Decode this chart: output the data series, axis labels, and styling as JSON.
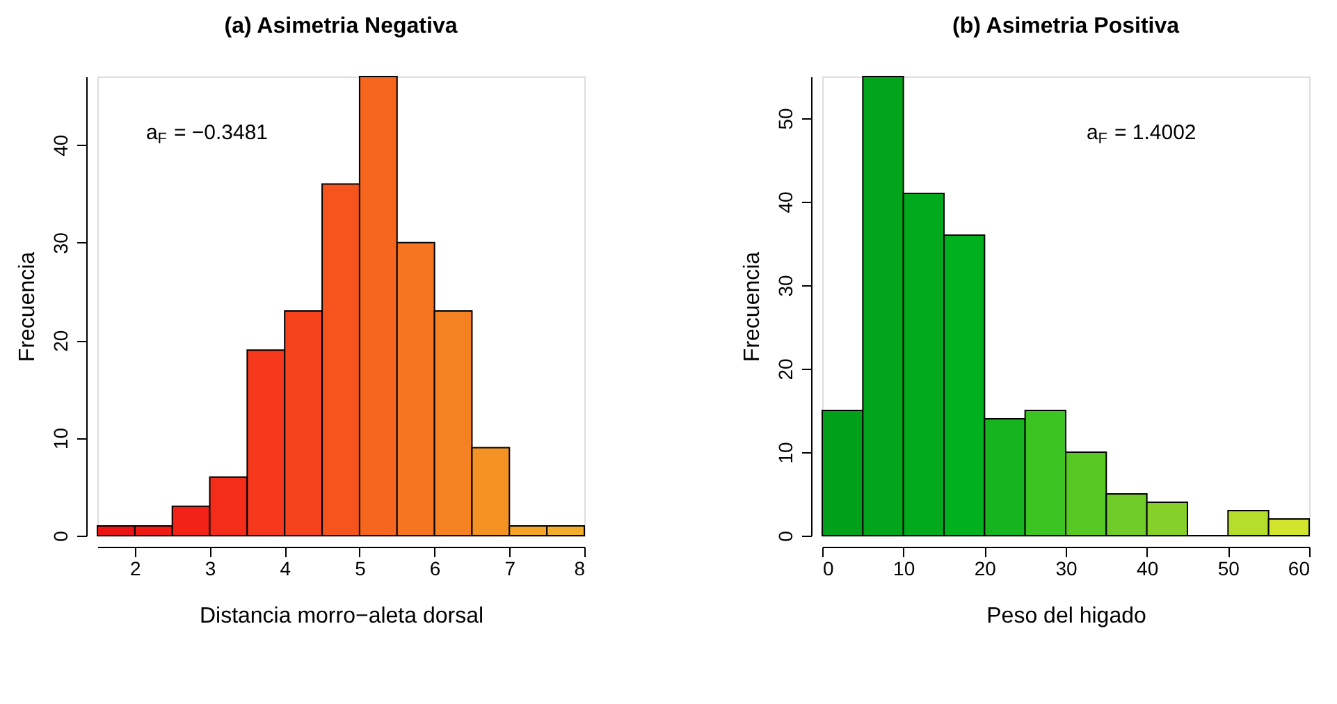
{
  "chart_data": [
    {
      "type": "histogram",
      "title": "(a) Asimetria Negativa",
      "xlabel": "Distancia morro−aleta dorsal",
      "ylabel": "Frecuencia",
      "bins": [
        1.5,
        2,
        2.5,
        3,
        3.5,
        4,
        4.5,
        5,
        5.5,
        6,
        6.5,
        7,
        7.5,
        8
      ],
      "values": [
        1,
        1,
        3,
        6,
        19,
        23,
        36,
        47,
        30,
        23,
        9,
        1,
        1
      ],
      "colors": [
        "#ec1410",
        "#ef1a12",
        "#f22216",
        "#f42c1a",
        "#f6381c",
        "#f5441c",
        "#f6541d",
        "#f6661f",
        "#f57520",
        "#f58222",
        "#f59224",
        "#f4a426",
        "#f2ae2a"
      ],
      "xlim": [
        1.5,
        8
      ],
      "xticks": [
        2,
        3,
        4,
        5,
        6,
        7,
        8
      ],
      "ylim": [
        0,
        47
      ],
      "yticks": [
        0,
        10,
        20,
        30,
        40
      ],
      "grid": false,
      "annotations": [
        "a$_{F}$ = −0.3481"
      ]
    },
    {
      "type": "histogram",
      "title": "(b) Asimetria Positiva",
      "xlabel": "Peso del higado",
      "ylabel": "Frecuencia",
      "bins": [
        0,
        5,
        10,
        15,
        20,
        25,
        30,
        35,
        40,
        45,
        50,
        55,
        60
      ],
      "values": [
        15,
        55,
        41,
        36,
        14,
        15,
        10,
        5,
        4,
        0,
        3,
        2
      ],
      "colors": [
        "#00a01a",
        "#00a51b",
        "#00aa1c",
        "#00b01d",
        "#16b520",
        "#3cc423",
        "#58c825",
        "#70cc28",
        "#86d02a",
        null,
        "#b5de2c",
        "#d3e42e"
      ],
      "xlim": [
        0,
        60
      ],
      "xticks": [
        0,
        10,
        20,
        30,
        40,
        50,
        60
      ],
      "ylim": [
        0,
        55
      ],
      "yticks": [
        0,
        10,
        20,
        30,
        40,
        50
      ],
      "grid": false,
      "annotations": [
        "a$_{F}$ = 1.4002"
      ]
    }
  ]
}
